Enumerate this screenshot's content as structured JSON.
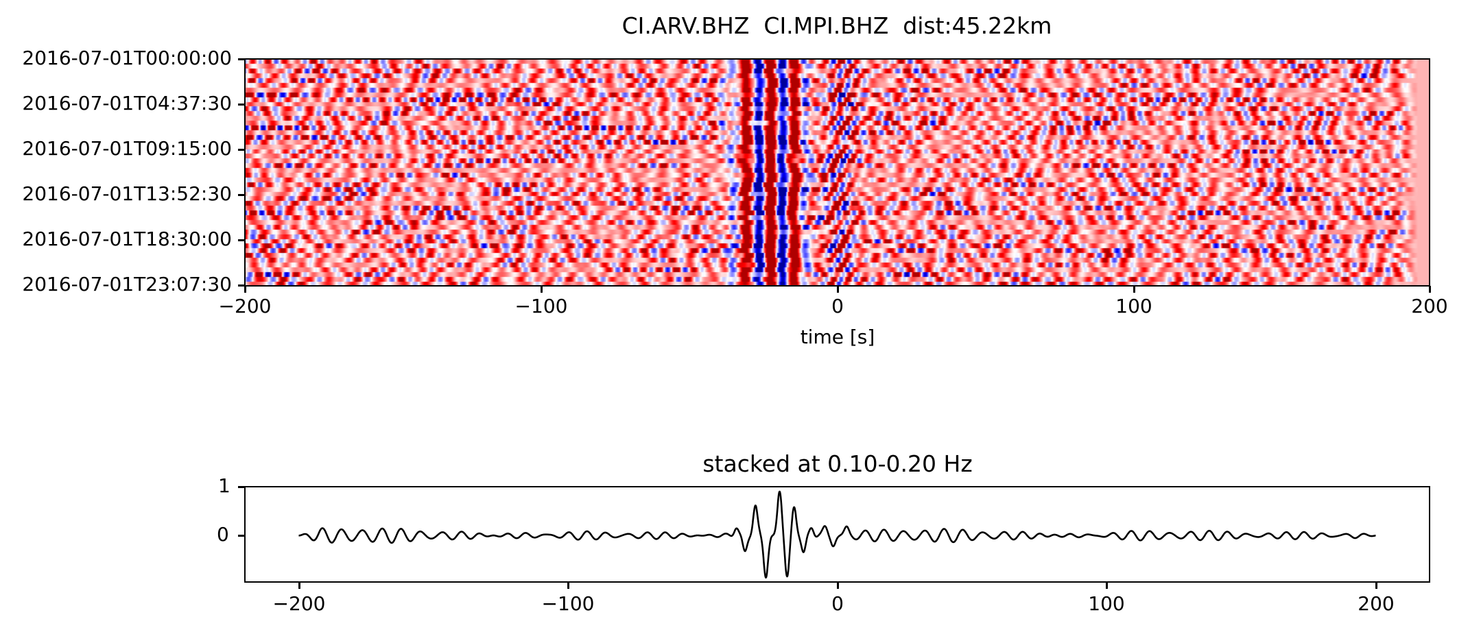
{
  "chart_data": [
    {
      "type": "heatmap",
      "title": "CI.ARV.BHZ  CI.MPI.BHZ  dist:45.22km",
      "xlabel": "time [s]",
      "ylabel": "",
      "xlim": [
        -200,
        200
      ],
      "xticks": [
        -200,
        -100,
        0,
        100,
        200
      ],
      "xtick_labels": [
        "−200",
        "−100",
        "0",
        "100",
        "200"
      ],
      "yticks": [
        "2016-07-01T00:00:00",
        "2016-07-01T04:37:30",
        "2016-07-01T09:15:00",
        "2016-07-01T13:52:30",
        "2016-07-01T18:30:00",
        "2016-07-01T23:07:30"
      ],
      "colormap": "bwr",
      "colors": {
        "negative": "#0000ff",
        "zero": "#ffffff",
        "positive": "#ff0000",
        "dark_positive": "#b00000",
        "dark_negative": "#00008b"
      },
      "coherent_arrival_bands_s": [
        {
          "t": -35.5,
          "sign": -1,
          "amp": 0.45
        },
        {
          "t": -31.0,
          "sign": 1,
          "amp": 0.8
        },
        {
          "t": -26.5,
          "sign": -1,
          "amp": 1.0
        },
        {
          "t": -22.5,
          "sign": 1,
          "amp": 1.0
        },
        {
          "t": -18.5,
          "sign": -1,
          "amp": 1.0
        },
        {
          "t": -14.5,
          "sign": 1,
          "amp": 0.85
        },
        {
          "t": -11.0,
          "sign": -1,
          "amp": 0.45
        }
      ],
      "rows": 48,
      "grid": false
    },
    {
      "type": "line",
      "title": "stacked at 0.10-0.20 Hz",
      "xlabel": "",
      "ylabel": "",
      "xlim": [
        -220,
        220
      ],
      "ylim": [
        -0.95,
        1.0
      ],
      "xticks": [
        -200,
        -100,
        0,
        100,
        200
      ],
      "xtick_labels": [
        "−200",
        "−100",
        "0",
        "100",
        "200"
      ],
      "yticks": [
        1,
        0
      ],
      "ytick_labels": [
        "1",
        "0"
      ],
      "grid": false,
      "series": [
        {
          "name": "stacked",
          "color": "#000000",
          "x_range": [
            -200,
            200
          ],
          "peaks": [
            {
              "x": -37.5,
              "y": 0.18
            },
            {
              "x": -34.3,
              "y": -0.35
            },
            {
              "x": -30.4,
              "y": 0.62
            },
            {
              "x": -26.5,
              "y": -0.85
            },
            {
              "x": -21.4,
              "y": 0.92
            },
            {
              "x": -18.6,
              "y": -0.88
            },
            {
              "x": -16.0,
              "y": 0.63
            },
            {
              "x": -12.5,
              "y": -0.4
            },
            {
              "x": -9.5,
              "y": 0.2
            },
            {
              "x": -4.5,
              "y": 0.15
            },
            {
              "x": -1.5,
              "y": -0.18
            },
            {
              "x": 3.5,
              "y": 0.14
            }
          ],
          "noise_amplitude": 0.07,
          "noise_period_s": 7.0
        }
      ]
    }
  ]
}
